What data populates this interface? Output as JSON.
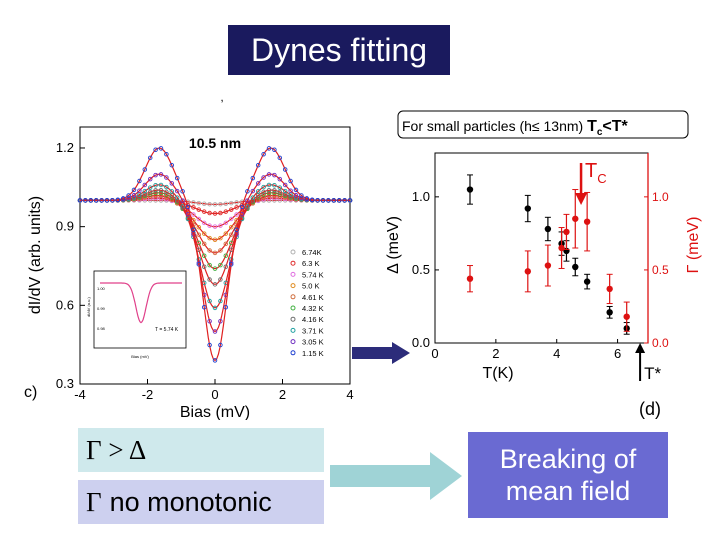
{
  "title": "Dynes fitting",
  "statements": {
    "gamma_gt_delta": "Γ > Δ",
    "gamma_symbol": "Γ",
    "no_monotonic_text": "no monotonic",
    "conclusion": "Breaking of mean field"
  },
  "chart_data": [
    {
      "type": "line",
      "panel_label": "c)",
      "title": "10.5 nm",
      "xlabel": "Bias (mV)",
      "ylabel": "dI/dV (arb. units)",
      "xlim": [
        -4,
        4
      ],
      "ylim": [
        0.3,
        1.28
      ],
      "xticks": [
        -4,
        -2,
        0,
        2,
        4
      ],
      "yticks": [
        0.3,
        0.6,
        0.9,
        1.2
      ],
      "legend": [
        "6.74K",
        "6.3 K",
        "5.74 K",
        "5.0 K",
        "4.61 K",
        "4.32 K",
        "4.16 K",
        "3.71 K",
        "3.05 K",
        "1.15 K"
      ],
      "legend_colors": [
        "#b0b0b0",
        "#e03030",
        "#e070e0",
        "#e08c20",
        "#d07040",
        "#40b040",
        "#707070",
        "#20a0a0",
        "#7030c0",
        "#2040d0"
      ],
      "curve_params": [
        {
          "temp": "6.74K",
          "dip_min": 0.985,
          "dip_width": 1.0,
          "peak": 1.0
        },
        {
          "temp": "6.3 K",
          "dip_min": 0.95,
          "dip_width": 1.05,
          "peak": 1.01
        },
        {
          "temp": "5.74 K",
          "dip_min": 0.9,
          "dip_width": 1.05,
          "peak": 1.01
        },
        {
          "temp": "5.0 K",
          "dip_min": 0.85,
          "dip_width": 1.0,
          "peak": 1.02
        },
        {
          "temp": "4.61 K",
          "dip_min": 0.8,
          "dip_width": 0.95,
          "peak": 1.02
        },
        {
          "temp": "4.32 K",
          "dip_min": 0.74,
          "dip_width": 0.9,
          "peak": 1.03
        },
        {
          "temp": "4.16 K",
          "dip_min": 0.68,
          "dip_width": 0.85,
          "peak": 1.04
        },
        {
          "temp": "3.71 K",
          "dip_min": 0.59,
          "dip_width": 0.8,
          "peak": 1.06
        },
        {
          "temp": "3.05 K",
          "dip_min": 0.5,
          "dip_width": 0.72,
          "peak": 1.1
        },
        {
          "temp": "1.15 K",
          "dip_min": 0.39,
          "dip_width": 0.65,
          "peak": 1.2
        }
      ],
      "inset": {
        "ylabel": "dI/dV (a.u.)",
        "xlabel": "Bias (mV)",
        "yticks": [
          "1.00",
          "0.99",
          "0.98"
        ],
        "xticks": [
          "-4",
          "-2",
          "0",
          "2",
          "4"
        ],
        "annotation": "T = 5.74 K"
      }
    },
    {
      "type": "scatter",
      "panel_label": "(d)",
      "header": "For small particles (h≤ 13nm) Tc<T*",
      "header_prefix": "For small particles (h",
      "header_le": "≤",
      "header_mid": " 13nm) ",
      "header_T": "T",
      "header_sub": "c",
      "header_lt": "<T*",
      "xlabel": "T(K)",
      "ylabel_left": "Δ (meV)",
      "ylabel_right": "Γ (meV)",
      "xlim": [
        0,
        7
      ],
      "ylim": [
        0,
        1.3
      ],
      "xticks": [
        0,
        2,
        4,
        6
      ],
      "yticks_left": [
        "0.0",
        "0.5",
        "1.0"
      ],
      "yticks_right": [
        "0.0",
        "0.5",
        "1.0"
      ],
      "series": [
        {
          "name": "Δ",
          "color": "#000000",
          "x": [
            1.15,
            3.05,
            3.71,
            4.16,
            4.32,
            4.61,
            5.0,
            5.74,
            6.3
          ],
          "y": [
            1.05,
            0.92,
            0.78,
            0.68,
            0.63,
            0.52,
            0.42,
            0.21,
            0.1
          ],
          "err": [
            0.1,
            0.09,
            0.08,
            0.08,
            0.07,
            0.06,
            0.05,
            0.04,
            0.04
          ]
        },
        {
          "name": "Γ",
          "color": "#dd1111",
          "x": [
            1.15,
            3.05,
            3.71,
            4.16,
            4.32,
            4.61,
            5.0,
            5.74,
            6.3
          ],
          "y": [
            0.44,
            0.49,
            0.53,
            0.65,
            0.76,
            0.85,
            0.83,
            0.37,
            0.18
          ],
          "err": [
            0.09,
            0.14,
            0.14,
            0.14,
            0.12,
            0.2,
            0.2,
            0.1,
            0.1
          ]
        }
      ],
      "annotations": [
        {
          "label": "T",
          "sub": "C",
          "color": "#dd1111",
          "x": 4.8
        },
        {
          "label": "T*",
          "color": "#000000",
          "x": 6.74
        }
      ]
    }
  ],
  "colors": {
    "title_bg": "#1a1a5e",
    "box_a_bg": "#cfe9ec",
    "box_b_bg": "#cdd0ef",
    "box_c_bg": "#6a6ad2",
    "arrow_teal": "#9fd3d6",
    "nav_arrow": "#2c2c7a"
  }
}
